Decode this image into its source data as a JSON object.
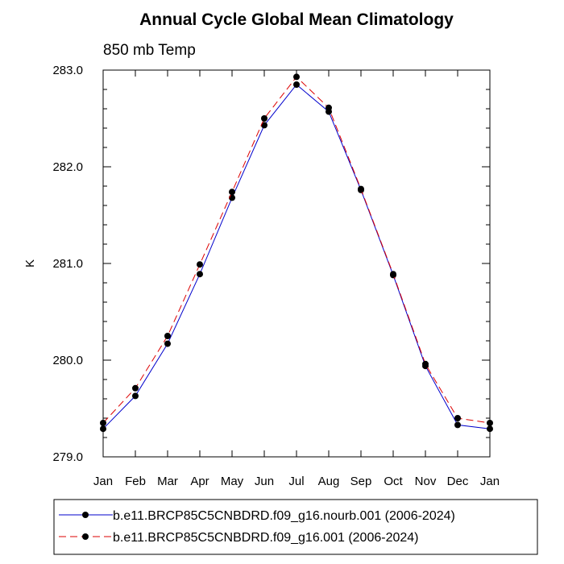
{
  "chart_data": {
    "type": "line",
    "title": "Annual Cycle Global Mean Climatology",
    "subtitle": "850 mb Temp",
    "xlabel": "",
    "ylabel": "K",
    "categories": [
      "Jan",
      "Feb",
      "Mar",
      "Apr",
      "May",
      "Jun",
      "Jul",
      "Aug",
      "Sep",
      "Oct",
      "Nov",
      "Dec",
      "Jan"
    ],
    "yticks": [
      "279.0",
      "280.0",
      "281.0",
      "282.0",
      "283.0"
    ],
    "ylim": [
      279.0,
      283.0
    ],
    "series": [
      {
        "name": "b.e11.BRCP85C5CNBDRD.f09_g16.nourb.001 (2006-2024)",
        "color": "#0000cc",
        "dash": "solid",
        "values": [
          279.29,
          279.63,
          280.17,
          280.89,
          281.68,
          282.43,
          282.85,
          282.57,
          281.76,
          280.88,
          279.94,
          279.33,
          279.29
        ]
      },
      {
        "name": "b.e11.BRCP85C5CNBDRD.f09_g16.001 (2006-2024)",
        "color": "#dd0000",
        "dash": "dashed",
        "values": [
          279.35,
          279.71,
          280.25,
          280.99,
          281.74,
          282.5,
          282.93,
          282.61,
          281.77,
          280.89,
          279.96,
          279.4,
          279.35
        ]
      }
    ]
  }
}
